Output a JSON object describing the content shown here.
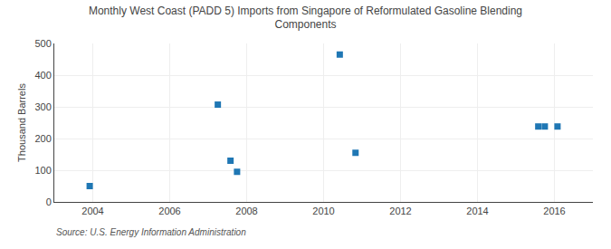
{
  "chart_data": {
    "type": "scatter",
    "title": "Monthly West Coast (PADD 5) Imports from Singapore of Reformulated Gasoline Blending\nComponents",
    "ylabel": "Thousand Barrels",
    "source": "Source: U.S. Energy Information Administration",
    "x": [
      2003.92,
      2007.25,
      2007.58,
      2007.75,
      2010.42,
      2010.83,
      2015.58,
      2015.75,
      2016.08
    ],
    "values": [
      50,
      307,
      130,
      95,
      465,
      155,
      238,
      238,
      238
    ],
    "marker": "square",
    "xlim": [
      2003.0,
      2017.0
    ],
    "ylim": [
      0,
      500
    ],
    "xticks": [
      2004,
      2006,
      2008,
      2010,
      2012,
      2014,
      2016
    ],
    "yticks": [
      0,
      100,
      200,
      300,
      400,
      500
    ],
    "grid": true
  }
}
